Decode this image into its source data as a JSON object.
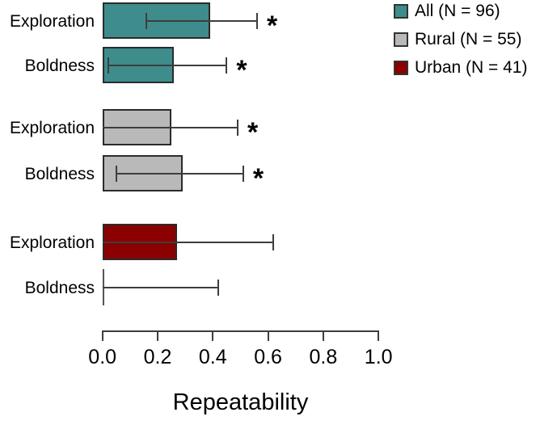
{
  "chart_data": {
    "type": "bar",
    "orientation": "horizontal",
    "title": "",
    "xlabel": "Repeatability",
    "ylabel": "",
    "xlim": [
      0.0,
      1.0
    ],
    "x_tick_labels": [
      "0.0",
      "0.2",
      "0.4",
      "0.6",
      "0.8",
      "1.0"
    ],
    "grid": false,
    "legend_position": "top-right",
    "significance_marker": "*",
    "legend": [
      {
        "key": "All",
        "label": "All (N = 96)",
        "color": "#3e8c8c"
      },
      {
        "key": "Rural",
        "label": "Rural (N = 55)",
        "color": "#b9b9b9"
      },
      {
        "key": "Urban",
        "label": "Urban (N = 41)",
        "color": "#8b0000"
      }
    ],
    "rows": [
      {
        "group": "All",
        "label": "Exploration",
        "value": 0.39,
        "ci_low": 0.16,
        "ci_high": 0.56,
        "significant": true
      },
      {
        "group": "All",
        "label": "Boldness",
        "value": 0.26,
        "ci_low": 0.02,
        "ci_high": 0.45,
        "significant": true
      },
      {
        "group": "Rural",
        "label": "Exploration",
        "value": 0.25,
        "ci_low": 0.0,
        "ci_high": 0.49,
        "significant": true
      },
      {
        "group": "Rural",
        "label": "Boldness",
        "value": 0.29,
        "ci_low": 0.05,
        "ci_high": 0.51,
        "significant": true
      },
      {
        "group": "Urban",
        "label": "Exploration",
        "value": 0.27,
        "ci_low": 0.0,
        "ci_high": 0.62,
        "significant": false
      },
      {
        "group": "Urban",
        "label": "Boldness",
        "value": 0.0,
        "ci_low": 0.0,
        "ci_high": 0.42,
        "significant": false
      }
    ]
  }
}
